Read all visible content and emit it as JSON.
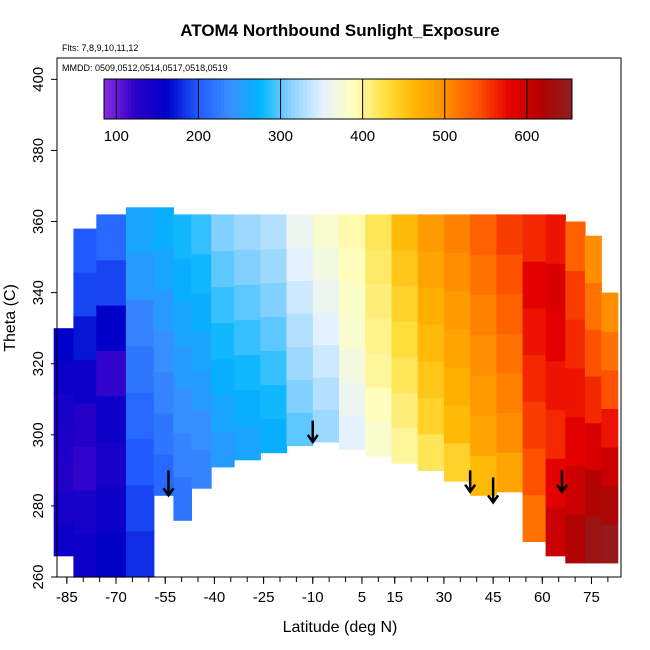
{
  "chart_data": {
    "type": "heatmap",
    "title": "ATOM4 Northbound Sunlight_Exposure",
    "flights_note": "Flts: 7,8,9,10,11,12",
    "dates_note": "MMDD: 0509,0512,0514,0517,0518,0519",
    "xlabel": "Latitude (deg N)",
    "ylabel": "Theta (C)",
    "xlim": [
      -88,
      84
    ],
    "ylim": [
      260,
      406
    ],
    "x_ticks": [
      -85,
      -70,
      -55,
      -40,
      -25,
      -10,
      5,
      15,
      30,
      45,
      60,
      75
    ],
    "y_ticks": [
      260,
      280,
      300,
      320,
      340,
      360,
      380,
      400
    ],
    "colorbar": {
      "min": 85,
      "max": 655,
      "ticks": [
        100,
        200,
        300,
        400,
        500,
        600
      ],
      "colors": [
        "#8a2be2",
        "#2a00c8",
        "#0000c8",
        "#1e5aff",
        "#3c8cff",
        "#00b4ff",
        "#8cd2ff",
        "#e6f2ff",
        "#ffffc0",
        "#ffe040",
        "#ffb400",
        "#ff8c00",
        "#ff5000",
        "#e60000",
        "#b40000",
        "#8b2020"
      ]
    },
    "field": [
      {
        "lat": -86,
        "bottom": 266,
        "top": 330,
        "values": [
          150,
          140,
          130,
          135,
          140,
          150,
          160
        ]
      },
      {
        "lat": -80,
        "bottom": 260,
        "top": 358,
        "values": [
          150,
          140,
          120,
          130,
          150,
          170,
          190,
          200
        ]
      },
      {
        "lat": -72,
        "bottom": 260,
        "top": 362,
        "values": [
          160,
          150,
          140,
          150,
          120,
          160,
          190,
          210
        ]
      },
      {
        "lat": -62,
        "bottom": 260,
        "top": 364,
        "values": [
          180,
          190,
          200,
          210,
          220,
          230,
          250,
          260
        ]
      },
      {
        "lat": -55,
        "bottom": 283,
        "top": 364,
        "values": [
          210,
          220,
          230,
          240,
          250,
          260,
          270
        ]
      },
      {
        "lat": -50,
        "bottom": 276,
        "top": 362,
        "values": [
          220,
          230,
          240,
          250,
          260,
          270,
          280
        ]
      },
      {
        "lat": -44,
        "bottom": 285,
        "top": 362,
        "values": [
          230,
          240,
          250,
          260,
          270,
          280,
          290
        ]
      },
      {
        "lat": -38,
        "bottom": 291,
        "top": 362,
        "values": [
          250,
          260,
          270,
          280,
          290,
          300,
          310
        ]
      },
      {
        "lat": -30,
        "bottom": 293,
        "top": 362,
        "values": [
          260,
          270,
          280,
          290,
          300,
          310,
          320
        ]
      },
      {
        "lat": -22,
        "bottom": 295,
        "top": 362,
        "values": [
          270,
          280,
          290,
          300,
          310,
          320,
          330
        ]
      },
      {
        "lat": -14,
        "bottom": 297,
        "top": 362,
        "values": [
          300,
          310,
          320,
          330,
          340,
          350,
          360
        ]
      },
      {
        "lat": -6,
        "bottom": 298,
        "top": 362,
        "values": [
          320,
          330,
          340,
          350,
          360,
          370,
          380
        ]
      },
      {
        "lat": 2,
        "bottom": 296,
        "top": 362,
        "values": [
          350,
          360,
          370,
          380,
          385,
          390,
          395
        ]
      },
      {
        "lat": 10,
        "bottom": 294,
        "top": 362,
        "values": [
          380,
          390,
          400,
          405,
          410,
          415,
          420
        ]
      },
      {
        "lat": 18,
        "bottom": 292,
        "top": 362,
        "values": [
          400,
          410,
          420,
          430,
          440,
          450,
          460
        ]
      },
      {
        "lat": 26,
        "bottom": 290,
        "top": 362,
        "values": [
          420,
          440,
          450,
          460,
          470,
          480,
          490
        ]
      },
      {
        "lat": 34,
        "bottom": 287,
        "top": 362,
        "values": [
          440,
          460,
          470,
          480,
          490,
          500,
          510
        ]
      },
      {
        "lat": 42,
        "bottom": 283,
        "top": 362,
        "values": [
          460,
          480,
          490,
          500,
          510,
          520,
          530
        ]
      },
      {
        "lat": 50,
        "bottom": 284,
        "top": 362,
        "values": [
          480,
          500,
          510,
          520,
          530,
          540,
          550
        ]
      },
      {
        "lat": 58,
        "bottom": 270,
        "top": 362,
        "values": [
          520,
          540,
          550,
          560,
          570,
          580,
          560
        ]
      },
      {
        "lat": 64,
        "bottom": 266,
        "top": 362,
        "values": [
          600,
          580,
          560,
          570,
          580,
          590,
          570
        ]
      },
      {
        "lat": 70,
        "bottom": 264,
        "top": 360,
        "values": [
          620,
          600,
          580,
          570,
          560,
          550,
          530
        ]
      },
      {
        "lat": 76,
        "bottom": 264,
        "top": 356,
        "values": [
          640,
          620,
          590,
          560,
          540,
          520,
          500
        ]
      },
      {
        "lat": 80,
        "bottom": 264,
        "top": 340,
        "values": [
          645,
          625,
          600,
          570,
          540,
          520,
          500
        ]
      }
    ],
    "arrows": [
      {
        "lat": -54,
        "theta_top": 290,
        "theta_bottom": 283
      },
      {
        "lat": -10,
        "theta_top": 304,
        "theta_bottom": 298
      },
      {
        "lat": 38,
        "theta_top": 290,
        "theta_bottom": 284
      },
      {
        "lat": 45,
        "theta_top": 288,
        "theta_bottom": 281
      },
      {
        "lat": 66,
        "theta_top": 290,
        "theta_bottom": 284
      }
    ]
  }
}
